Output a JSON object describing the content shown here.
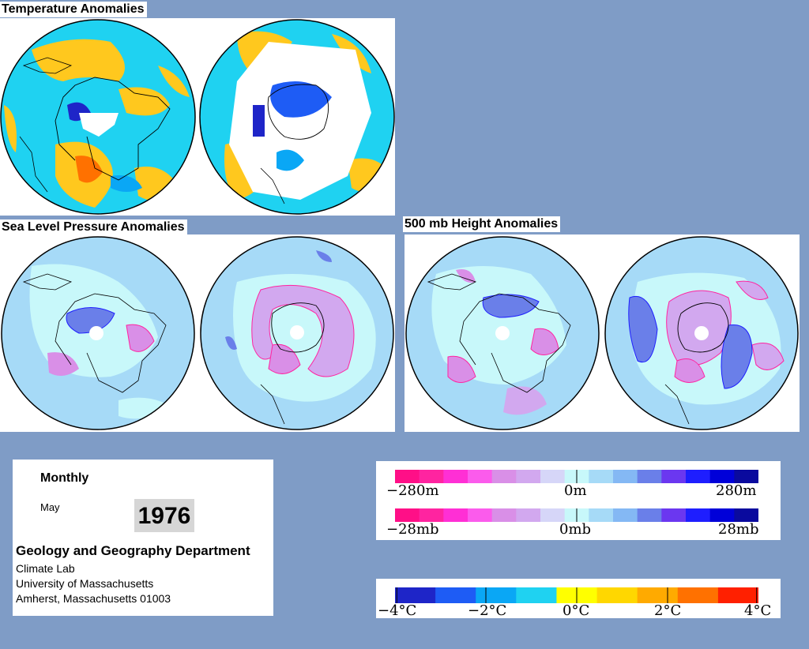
{
  "titles": {
    "temperature": "Temperature Anomalies",
    "slp": "Sea Level Pressure Anomalies",
    "height": "500 mb Height Anomalies"
  },
  "info": {
    "period": "Monthly",
    "month": "May",
    "year": "1976",
    "department": "Geology and Geography Department",
    "lab": "Climate Lab",
    "university": "University of Massachusetts",
    "address": "Amherst, Massachusetts 01003"
  },
  "legends": {
    "height": {
      "min": "−280m",
      "mid": "0m",
      "max": "280m"
    },
    "pressure": {
      "min": "−28mb",
      "mid": "0mb",
      "max": "28mb"
    },
    "temperature": {
      "tick1": "−4°C",
      "tick2": "−2°C",
      "tick3": "0°C",
      "tick4": "2°C",
      "tick5": "4°C"
    }
  },
  "colors": {
    "page_background": "#7f9cc6",
    "anomaly_scale": [
      "#ff0f87",
      "#ff24a0",
      "#ff2fd5",
      "#fb5bec",
      "#d98fe7",
      "#d2a8ef",
      "#d6d6f8",
      "#c8f8fa",
      "#a6daf7",
      "#84b8f4",
      "#6a7fe9",
      "#6b37f0",
      "#1e1eff",
      "#0000d9",
      "#0a0a9e"
    ],
    "temperature_scale": [
      "#1e25c8",
      "#1e5cf5",
      "#0aa7f5",
      "#1fd2f1",
      "#ffff00",
      "#ffd700",
      "#ffaa00",
      "#ff7100",
      "#ff2000"
    ],
    "neutral_fill": "#b8f0fa",
    "warm_fill": "#ffc81e",
    "cold_fill": "#4da4ec",
    "pressure_fill": "#a6daf7",
    "coast_line": "#000000"
  }
}
